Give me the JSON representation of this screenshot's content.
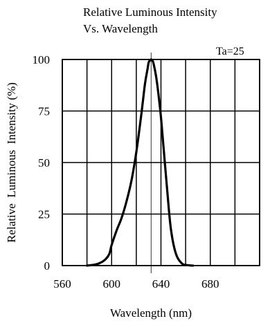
{
  "chart_data": {
    "type": "line",
    "title": [
      "Relative Luminous Intensity",
      "Vs. Wavelength"
    ],
    "annotation": "Ta=25",
    "xlabel": "Wavelength (nm)",
    "ylabel": "Relative  Luminous  Intensity (%)",
    "xlim": [
      560,
      720
    ],
    "ylim": [
      0,
      100
    ],
    "x_ticks": [
      560,
      600,
      640,
      680
    ],
    "x_ticks_labels": [
      "560",
      "600",
      "640",
      "680"
    ],
    "y_ticks": [
      0,
      25,
      50,
      75,
      100
    ],
    "y_ticks_labels": [
      "0",
      "25",
      "50",
      "75",
      "100"
    ],
    "grid_x": [
      560,
      580,
      600,
      620,
      640,
      660,
      680,
      700,
      720
    ],
    "grid_y": [
      0,
      25,
      50,
      75,
      100
    ],
    "marker_x": 632,
    "series": [
      {
        "color": "#000000",
        "x": [
          580,
          588,
          594,
          598,
          600,
          604,
          608,
          612,
          616,
          620,
          624,
          627,
          629,
          630,
          631,
          632,
          633,
          634,
          636,
          638,
          640,
          642,
          645,
          648,
          652,
          657,
          662,
          666
        ],
        "y": [
          0,
          0.7,
          2.5,
          5.5,
          10,
          17,
          23,
          31,
          41,
          55,
          73,
          88,
          95,
          98.5,
          99.5,
          100,
          99.5,
          98,
          92,
          83,
          72,
          58,
          37,
          18,
          6,
          1,
          0.2,
          0
        ]
      }
    ]
  }
}
